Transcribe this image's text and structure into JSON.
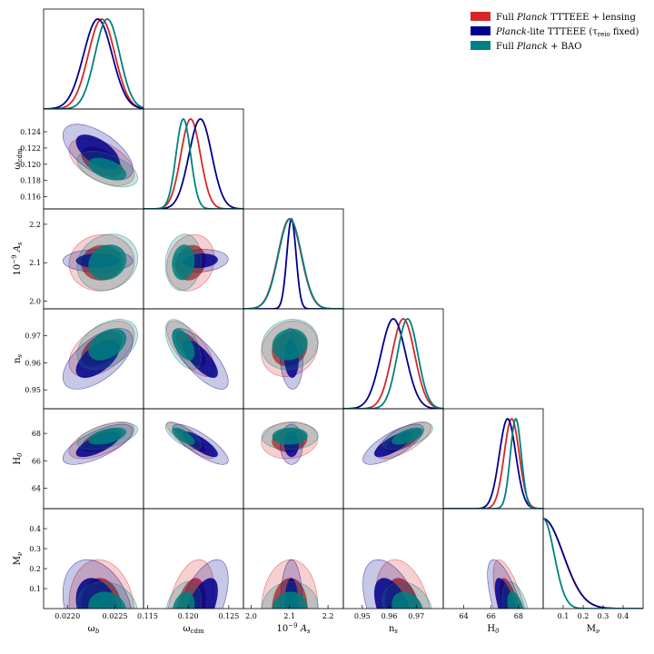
{
  "chart_data": {
    "type": "triangle-corner",
    "legend_position": "top-right",
    "series": [
      {
        "name": "Full Planck TTTEEE + lensing",
        "color": "#d62728"
      },
      {
        "name": "Planck-lite TTTEEE (τreio fixed)",
        "color": "#00008b"
      },
      {
        "name": "Full Planck + BAO",
        "color": "#008080"
      }
    ],
    "legend": {
      "s0": {
        "plain1": "Full ",
        "ital": "Planck",
        "plain2": " TTTEEE + lensing"
      },
      "s1": {
        "plain1": "",
        "ital": "Planck",
        "plain2": "-lite TTTEEE (τ",
        "sub": "reio",
        "plain3": " fixed)"
      },
      "s2": {
        "plain1": "Full ",
        "ital": "Planck",
        "plain2": " + BAO"
      }
    },
    "params": [
      {
        "id": "omega_b",
        "label": "ω",
        "sub": "b",
        "range": [
          0.02175,
          0.0228
        ],
        "ticks": [
          0.022,
          0.0225
        ],
        "tick_labels": [
          "0.0220",
          "0.0225"
        ],
        "means": [
          0.02236,
          0.02232,
          0.02242
        ],
        "sigmas": [
          0.00014,
          0.00015,
          0.00013
        ]
      },
      {
        "id": "omega_cdm",
        "label": "ω",
        "sub": "cdm",
        "range": [
          0.1145,
          0.1268
        ],
        "ticks": [
          0.115,
          0.12,
          0.125
        ],
        "tick_labels": [
          "0.115",
          "0.120",
          "0.125"
        ],
        "y_ticks": [
          0.116,
          0.118,
          0.12,
          0.122,
          0.124
        ],
        "y_tick_labels": [
          "0.116",
          "0.118",
          "0.120",
          "0.122",
          "0.124"
        ],
        "means": [
          0.1203,
          0.1215,
          0.1194
        ],
        "sigmas": [
          0.0012,
          0.0014,
          0.0009
        ]
      },
      {
        "id": "As",
        "label": "10",
        "sup": "−9",
        "label2": "A",
        "sub": "s",
        "range": [
          1.98,
          2.24
        ],
        "ticks": [
          2.0,
          2.1,
          2.2
        ],
        "tick_labels": [
          "2.0",
          "2.1",
          "2.2"
        ],
        "means": [
          2.1,
          2.105,
          2.101
        ],
        "sigmas": [
          0.03,
          0.012,
          0.03
        ]
      },
      {
        "id": "ns",
        "label": "n",
        "sub": "s",
        "range": [
          0.943,
          0.98
        ],
        "ticks": [
          0.95,
          0.96,
          0.97
        ],
        "tick_labels": [
          "0.95",
          "0.96",
          "0.97"
        ],
        "means": [
          0.9652,
          0.9615,
          0.9668
        ],
        "sigmas": [
          0.0042,
          0.0046,
          0.0038
        ]
      },
      {
        "id": "H0",
        "label": "H",
        "sub": "0",
        "range": [
          62.5,
          69.8
        ],
        "ticks": [
          64,
          66,
          68
        ],
        "tick_labels": [
          "64",
          "66",
          "68"
        ],
        "y_ticks": [
          64,
          66,
          68
        ],
        "y_tick_labels": [
          "64",
          "66",
          "68"
        ],
        "means": [
          67.5,
          67.2,
          67.8
        ],
        "sigmas": [
          0.55,
          0.6,
          0.4
        ]
      },
      {
        "id": "Mnu",
        "label": "M",
        "sub": "ν",
        "range": [
          0.0,
          0.5
        ],
        "ticks": [
          0.1,
          0.2,
          0.3,
          0.4
        ],
        "tick_labels": [
          "0.1",
          "0.2",
          "0.3",
          "0.4"
        ],
        "y_ticks": [
          0.1,
          0.2,
          0.3,
          0.4
        ],
        "y_tick_labels": [
          "0.1",
          "0.2",
          "0.3",
          "0.4"
        ],
        "means": [
          0.0,
          0.0,
          0.0
        ],
        "sigmas": [
          0.1,
          0.1,
          0.055
        ]
      }
    ],
    "correlations": [
      {
        "pair": [
          "omega_b",
          "omega_cdm"
        ],
        "rho": [
          -0.5,
          -0.6,
          -0.5
        ]
      },
      {
        "pair": [
          "omega_b",
          "As"
        ],
        "rho": [
          0.05,
          0.0,
          0.15
        ]
      },
      {
        "pair": [
          "omega_b",
          "ns"
        ],
        "rho": [
          0.5,
          0.6,
          0.4
        ]
      },
      {
        "pair": [
          "omega_b",
          "H0"
        ],
        "rho": [
          0.6,
          0.7,
          0.5
        ]
      },
      {
        "pair": [
          "omega_b",
          "Mnu"
        ],
        "rho": [
          -0.1,
          -0.3,
          -0.15
        ]
      },
      {
        "pair": [
          "omega_cdm",
          "As"
        ],
        "rho": [
          0.15,
          0.15,
          0.1
        ]
      },
      {
        "pair": [
          "omega_cdm",
          "ns"
        ],
        "rho": [
          -0.7,
          -0.75,
          -0.55
        ]
      },
      {
        "pair": [
          "omega_cdm",
          "H0"
        ],
        "rho": [
          -0.85,
          -0.8,
          -0.7
        ]
      },
      {
        "pair": [
          "omega_cdm",
          "Mnu"
        ],
        "rho": [
          0.35,
          0.6,
          0.3
        ]
      },
      {
        "pair": [
          "As",
          "ns"
        ],
        "rho": [
          0.15,
          -0.1,
          0.1
        ]
      },
      {
        "pair": [
          "As",
          "H0"
        ],
        "rho": [
          0.1,
          0.0,
          0.05
        ]
      },
      {
        "pair": [
          "As",
          "Mnu"
        ],
        "rho": [
          0.05,
          0.0,
          0.05
        ]
      },
      {
        "pair": [
          "ns",
          "H0"
        ],
        "rho": [
          0.7,
          0.75,
          0.6
        ]
      },
      {
        "pair": [
          "ns",
          "Mnu"
        ],
        "rho": [
          -0.3,
          -0.5,
          -0.25
        ]
      },
      {
        "pair": [
          "H0",
          "Mnu"
        ],
        "rho": [
          -0.7,
          -0.7,
          -0.45
        ]
      }
    ]
  }
}
